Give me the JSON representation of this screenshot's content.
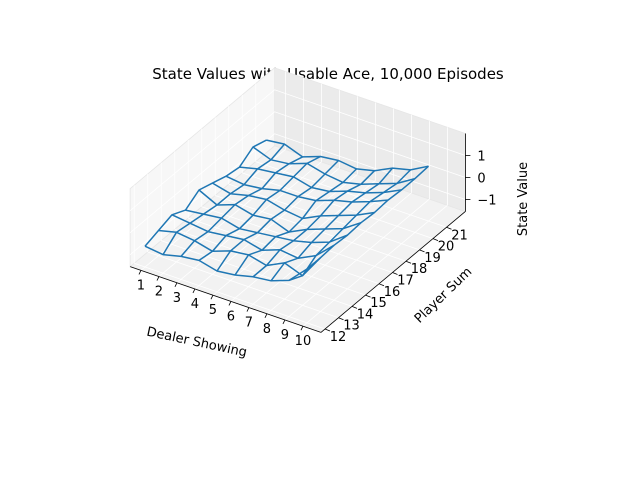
{
  "chart_data": {
    "type": "wireframe3d",
    "title": "State Values with Usable Ace, 10,000 Episodes",
    "xlabel": "Dealer Showing",
    "ylabel": "Player Sum",
    "zlabel": "State Value",
    "x": [
      1,
      2,
      3,
      4,
      5,
      6,
      7,
      8,
      9,
      10
    ],
    "y": [
      12,
      13,
      14,
      15,
      16,
      17,
      18,
      19,
      20,
      21
    ],
    "x_ticks": [
      "1",
      "2",
      "3",
      "4",
      "5",
      "6",
      "7",
      "8",
      "9",
      "10"
    ],
    "y_ticks": [
      "12",
      "13",
      "14",
      "15",
      "16",
      "17",
      "18",
      "19",
      "20",
      "21"
    ],
    "z_ticks": [
      "−1",
      "0",
      "1"
    ],
    "zlim": [
      -1,
      1
    ],
    "line_color": "#1f77b4",
    "grid": true,
    "z": [
      [
        -0.6,
        -0.7,
        -0.5,
        -0.4,
        -0.6,
        -0.5,
        -0.3,
        -0.2,
        0.1,
        0.9
      ],
      [
        -0.4,
        -0.2,
        -0.3,
        -0.5,
        -0.2,
        -0.1,
        -0.3,
        0.1,
        -0.2,
        0.9
      ],
      [
        -0.2,
        -0.3,
        -0.4,
        -0.3,
        -0.2,
        -0.4,
        -0.1,
        -0.2,
        0.2,
        0.95
      ],
      [
        -0.5,
        -0.4,
        -0.3,
        -0.5,
        -0.4,
        -0.3,
        -0.2,
        0.0,
        0.3,
        0.9
      ],
      [
        -0.1,
        -0.5,
        -0.2,
        -0.4,
        -0.3,
        -0.6,
        -0.2,
        0.1,
        0.4,
        0.95
      ],
      [
        -0.3,
        -0.5,
        -0.3,
        -0.2,
        -0.4,
        -0.5,
        -0.1,
        0.2,
        0.5,
        0.9
      ],
      [
        -0.5,
        -0.6,
        -0.5,
        -0.3,
        -0.3,
        -0.2,
        0.1,
        0.3,
        0.6,
        0.95
      ],
      [
        -0.6,
        -0.4,
        -0.3,
        -0.2,
        -0.4,
        -0.3,
        0.0,
        0.2,
        0.5,
        0.9
      ],
      [
        -0.2,
        -0.5,
        -0.4,
        -0.1,
        -0.3,
        -0.4,
        -0.2,
        0.1,
        0.4,
        0.9
      ],
      [
        -0.4,
        -0.3,
        -0.6,
        -0.3,
        -0.2,
        -0.3,
        -0.1,
        0.3,
        0.5,
        0.95
      ]
    ]
  }
}
